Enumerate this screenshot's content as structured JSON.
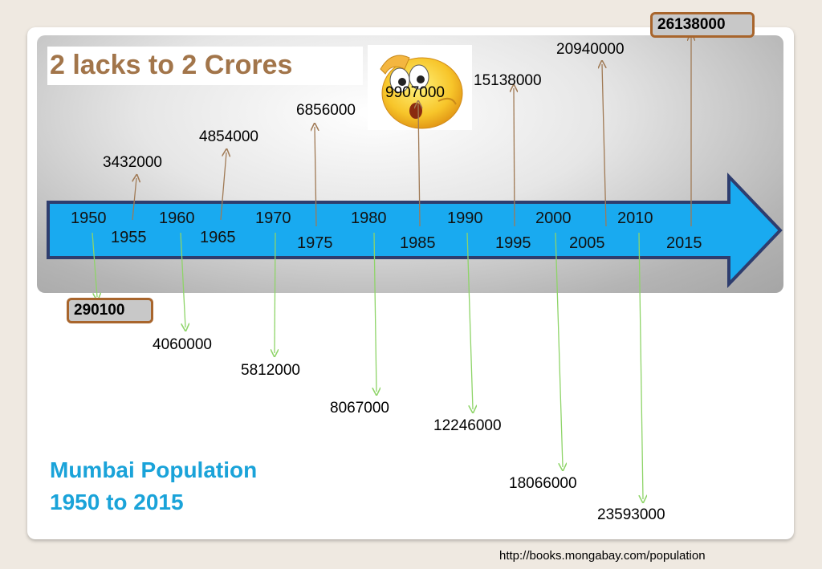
{
  "title": "2 lacks to 2 Crores",
  "subtitle_line1": "Mumbai Population",
  "subtitle_line2": "1950 to 2015",
  "source": "http://books.mongabay.com/population",
  "emoji_icon": "surprised-emoji-icon",
  "colors": {
    "arrow_fill": "#19aaf0",
    "arrow_border": "#2e3d6e",
    "up_arrow": "#a07a55",
    "down_arrow": "#8ed468",
    "title": "#a2754a",
    "subtitle": "#1aa3d9",
    "highlight_border": "#a8652c"
  },
  "years": {
    "y1950": "1950",
    "y1955": "1955",
    "y1960": "1960",
    "y1965": "1965",
    "y1970": "1970",
    "y1975": "1975",
    "y1980": "1980",
    "y1985": "1985",
    "y1990": "1990",
    "y1995": "1995",
    "y2000": "2000",
    "y2005": "2005",
    "y2010": "2010",
    "y2015": "2015"
  },
  "population": {
    "p1950": "290100",
    "p1955": "3432000",
    "p1960": "4060000",
    "p1965": "4854000",
    "p1970": "5812000",
    "p1975": "6856000",
    "p1980": "8067000",
    "p1985": "9907000",
    "p1990": "12246000",
    "p1995": "15138000",
    "p2000": "18066000",
    "p2005": "20940000",
    "p2010": "23593000",
    "p2015": "26138000"
  }
}
